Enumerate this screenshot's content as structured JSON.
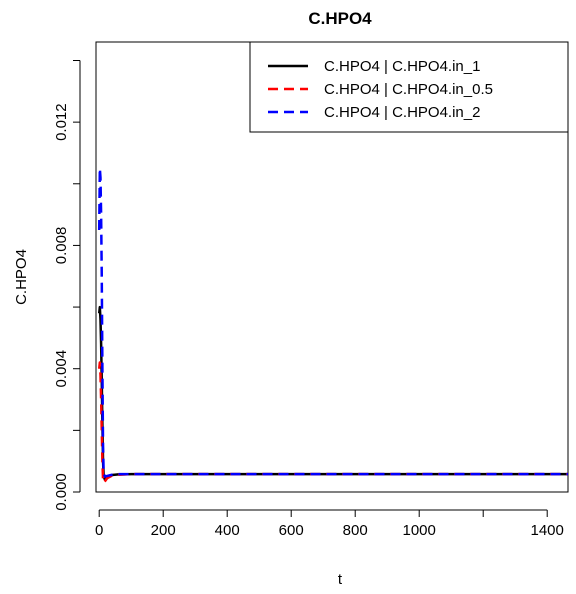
{
  "chart_data": {
    "type": "line",
    "title": "C.HPO4",
    "xlabel": "t",
    "ylabel": "C.HPO4",
    "xlim": [
      -10,
      1465
    ],
    "ylim": [
      0.0,
      0.0146
    ],
    "x_ticks": [
      0,
      200,
      400,
      600,
      800,
      1000,
      1200,
      1400
    ],
    "x_tick_labels": [
      "0",
      "200",
      "400",
      "600",
      "800",
      "1000",
      "",
      "1400"
    ],
    "y_ticks": [
      0.0,
      0.002,
      0.004,
      0.006,
      0.008,
      0.01,
      0.012,
      0.014
    ],
    "y_tick_labels": [
      "0.000",
      "",
      "0.004",
      "",
      "0.008",
      "",
      "0.012",
      ""
    ],
    "grid": false,
    "legend_position": "top-right",
    "series": [
      {
        "name": "C.HPO4 | C.HPO4.in_1",
        "color": "#000000",
        "dash": "solid",
        "x": [
          0,
          2,
          4,
          6,
          8,
          10,
          12,
          14,
          18,
          25,
          40,
          60,
          100,
          200,
          400,
          800,
          1200,
          1465
        ],
        "y": [
          0.0058,
          0.006,
          0.0056,
          0.0048,
          0.0036,
          0.0022,
          0.001,
          0.0005,
          0.0004,
          0.0005,
          0.00055,
          0.00057,
          0.00058,
          0.00058,
          0.00058,
          0.00058,
          0.00058,
          0.00058
        ]
      },
      {
        "name": "C.HPO4 | C.HPO4.in_0.5",
        "color": "#ff0000",
        "dash": "dashed",
        "x": [
          0,
          2,
          4,
          6,
          8,
          10,
          12,
          14,
          18,
          25,
          40,
          60,
          100,
          200,
          400,
          800,
          1200,
          1465
        ],
        "y": [
          0.004,
          0.0042,
          0.0038,
          0.003,
          0.002,
          0.001,
          0.0004,
          0.0003,
          0.00035,
          0.00045,
          0.00053,
          0.00056,
          0.00058,
          0.00058,
          0.00058,
          0.00058,
          0.00058,
          0.00058
        ]
      },
      {
        "name": "C.HPO4 | C.HPO4.in_2",
        "color": "#0000ff",
        "dash": "dashed",
        "x": [
          0,
          2,
          4,
          6,
          8,
          10,
          12,
          14,
          18,
          25,
          40,
          60,
          100,
          200,
          400,
          800,
          1200,
          1465
        ],
        "y": [
          0.0085,
          0.0105,
          0.0102,
          0.009,
          0.007,
          0.004,
          0.0015,
          0.0006,
          0.0005,
          0.00052,
          0.00056,
          0.00058,
          0.00058,
          0.00058,
          0.00058,
          0.00058,
          0.00058,
          0.00058
        ]
      }
    ]
  }
}
